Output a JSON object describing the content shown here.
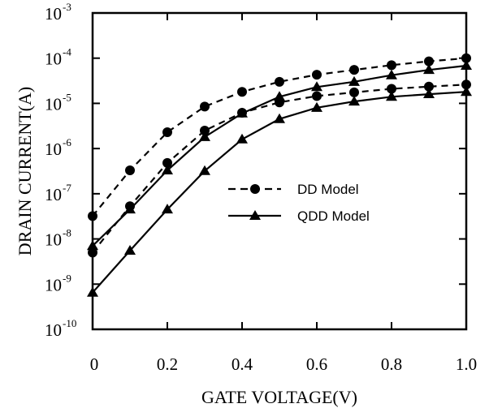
{
  "chart_data": {
    "type": "line",
    "xlabel": "GATE VOLTAGE(V)",
    "ylabel": "DRAIN CURRENT(A)",
    "xlim": [
      0,
      1.0
    ],
    "ylim": [
      1e-10,
      0.001
    ],
    "yscale": "log",
    "x_tick_labels": [
      "0",
      "0.2",
      "0.4",
      "0.6",
      "0.8",
      "1.0"
    ],
    "x_ticks": [
      0,
      0.2,
      0.4,
      0.6,
      0.8,
      1.0
    ],
    "y_tick_exponents": [
      "-10",
      "-9",
      "-8",
      "-7",
      "-6",
      "-5",
      "-4",
      "-3"
    ],
    "y_tick_base": "10",
    "grid": false,
    "legend_position": "center-right",
    "legend": [
      {
        "label": "DD Model",
        "marker": "circle",
        "linestyle": "dashed"
      },
      {
        "label": "QDD Model",
        "marker": "triangle",
        "linestyle": "solid"
      }
    ],
    "series": [
      {
        "model": "DD",
        "marker": "circle",
        "dash": true,
        "x": [
          0,
          0.1,
          0.2,
          0.3,
          0.4,
          0.5,
          0.6,
          0.7,
          0.8,
          0.9,
          1.0
        ],
        "y": [
          3.2e-08,
          3.3e-07,
          2.3e-06,
          8.5e-06,
          1.8e-05,
          3e-05,
          4.3e-05,
          5.5e-05,
          7e-05,
          8.5e-05,
          0.0001
        ]
      },
      {
        "model": "DD",
        "marker": "circle",
        "dash": true,
        "x": [
          0,
          0.1,
          0.2,
          0.3,
          0.4,
          0.5,
          0.6,
          0.7,
          0.8,
          0.9,
          1.0
        ],
        "y": [
          5e-09,
          5.3e-08,
          4.8e-07,
          2.5e-06,
          6.2e-06,
          1.05e-05,
          1.45e-05,
          1.75e-05,
          2.1e-05,
          2.35e-05,
          2.6e-05
        ]
      },
      {
        "model": "QDD",
        "marker": "triangle",
        "dash": false,
        "x": [
          0,
          0.1,
          0.2,
          0.3,
          0.4,
          0.5,
          0.6,
          0.7,
          0.8,
          0.9,
          1.0
        ],
        "y": [
          7e-09,
          4.5e-08,
          3.3e-07,
          1.8e-06,
          6e-06,
          1.4e-05,
          2.3e-05,
          3e-05,
          4.2e-05,
          5.5e-05,
          6.8e-05
        ]
      },
      {
        "model": "QDD",
        "marker": "triangle",
        "dash": false,
        "x": [
          0,
          0.1,
          0.2,
          0.3,
          0.4,
          0.5,
          0.6,
          0.7,
          0.8,
          0.9,
          1.0
        ],
        "y": [
          6.5e-10,
          5.5e-09,
          4.5e-08,
          3.2e-07,
          1.6e-06,
          4.5e-06,
          8e-06,
          1.1e-05,
          1.4e-05,
          1.6e-05,
          1.8e-05
        ]
      }
    ]
  }
}
